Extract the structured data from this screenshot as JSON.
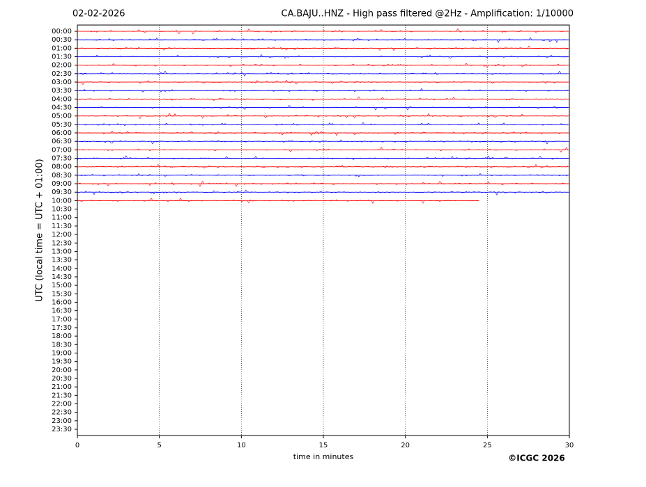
{
  "chart_data": {
    "type": "helicorder",
    "date": "02-02-2026",
    "title": "CA.BAJU..HNZ - High pass filtered @2Hz - Amplification: 1/10000",
    "ylabel": "UTC (local time = UTC + 01:00)",
    "xlabel": "time in minutes",
    "credit": "©ICGC 2026",
    "rows": [
      "00:00",
      "00:30",
      "01:00",
      "01:30",
      "02:00",
      "02:30",
      "03:00",
      "03:30",
      "04:00",
      "04:30",
      "05:00",
      "05:30",
      "06:00",
      "06:30",
      "07:00",
      "07:30",
      "08:00",
      "08:30",
      "09:00",
      "09:30",
      "10:00",
      "10:30",
      "11:00",
      "11:30",
      "12:00",
      "12:30",
      "13:00",
      "13:30",
      "14:00",
      "14:30",
      "15:00",
      "15:30",
      "16:00",
      "16:30",
      "17:00",
      "17:30",
      "18:00",
      "18:30",
      "19:00",
      "19:30",
      "20:00",
      "20:30",
      "21:00",
      "21:30",
      "22:00",
      "22:30",
      "23:00",
      "23:30"
    ],
    "trace_end": [
      30,
      30,
      30,
      30,
      30,
      30,
      30,
      30,
      30,
      30,
      30,
      30,
      30,
      30,
      30,
      30,
      30,
      30,
      30,
      30,
      24.5
    ],
    "colors": [
      "#ff0000",
      "#0000ff"
    ],
    "xlim": [
      0,
      30
    ],
    "xticks": [
      0,
      5,
      10,
      15,
      20,
      25,
      30
    ],
    "grid": true
  }
}
